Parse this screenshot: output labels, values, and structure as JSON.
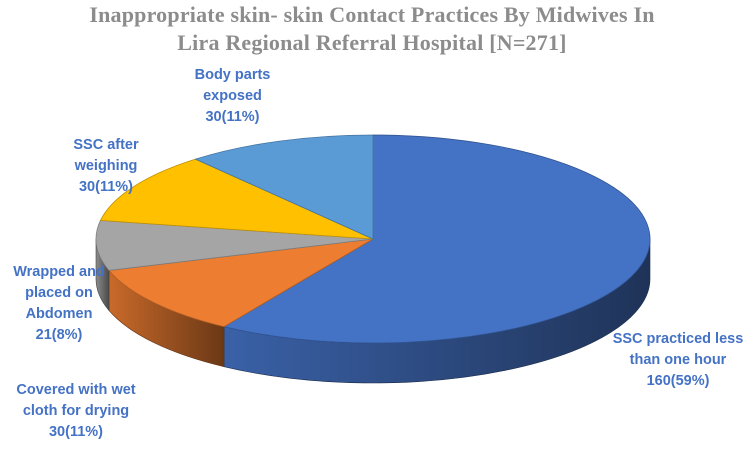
{
  "chart_data": {
    "type": "pie",
    "title_lines": [
      "Inappropriate skin- skin Contact  Practices By Midwives In",
      "Lira Regional Referral Hospital [N=271]"
    ],
    "slices": [
      {
        "category": "SSC practiced less than one hour",
        "value": 160,
        "percent": 59,
        "color": "#4472c4",
        "label_lines": [
          "SSC practiced less",
          "than one hour",
          "160(59%)"
        ]
      },
      {
        "category": "Covered with wet cloth for drying",
        "value": 30,
        "percent": 11,
        "color": "#ed7d31",
        "label_lines": [
          "Covered with wet",
          "cloth for drying",
          "30(11%)"
        ]
      },
      {
        "category": "Wrapped and placed on Abdomen",
        "value": 21,
        "percent": 8,
        "color": "#a5a5a5",
        "label_lines": [
          "Wrapped and",
          "placed on",
          "Abdomen",
          "21(8%)"
        ]
      },
      {
        "category": "SSC after weighing",
        "value": 30,
        "percent": 11,
        "color": "#ffc000",
        "label_lines": [
          "SSC after",
          "weighing",
          "30(11%)"
        ]
      },
      {
        "category": "Body parts exposed",
        "value": 30,
        "percent": 11,
        "color": "#5b9bd5",
        "label_lines": [
          "Body parts",
          "exposed",
          "30(11%)"
        ]
      }
    ],
    "style": "3d-pie",
    "legend": "none"
  }
}
